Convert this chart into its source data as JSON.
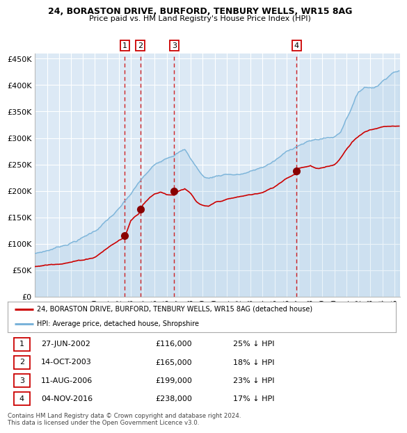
{
  "title1": "24, BORASTON DRIVE, BURFORD, TENBURY WELLS, WR15 8AG",
  "title2": "Price paid vs. HM Land Registry's House Price Index (HPI)",
  "background_color": "#ffffff",
  "plot_bg_color": "#dce9f5",
  "grid_color": "#ffffff",
  "ylim": [
    0,
    460000
  ],
  "xlim_start": 1995.0,
  "xlim_end": 2025.5,
  "yticks": [
    0,
    50000,
    100000,
    150000,
    200000,
    250000,
    300000,
    350000,
    400000,
    450000
  ],
  "ytick_labels": [
    "£0",
    "£50K",
    "£100K",
    "£150K",
    "£200K",
    "£250K",
    "£300K",
    "£350K",
    "£400K",
    "£450K"
  ],
  "xticks": [
    1995,
    1996,
    1997,
    1998,
    1999,
    2000,
    2001,
    2002,
    2003,
    2004,
    2005,
    2006,
    2007,
    2008,
    2009,
    2010,
    2011,
    2012,
    2013,
    2014,
    2015,
    2016,
    2017,
    2018,
    2019,
    2020,
    2021,
    2022,
    2023,
    2024,
    2025
  ],
  "hpi_color": "#7ab3d9",
  "price_color": "#cc0000",
  "sale_marker_color": "#880000",
  "sale_dates": [
    2002.49,
    2003.79,
    2006.62,
    2016.84
  ],
  "sale_prices": [
    116000,
    165000,
    199000,
    238000
  ],
  "dashed_line_color": "#cc0000",
  "legend_entries": [
    "24, BORASTON DRIVE, BURFORD, TENBURY WELLS, WR15 8AG (detached house)",
    "HPI: Average price, detached house, Shropshire"
  ],
  "table_entries": [
    {
      "num": "1",
      "date": "27-JUN-2002",
      "price": "£116,000",
      "hpi": "25% ↓ HPI"
    },
    {
      "num": "2",
      "date": "14-OCT-2003",
      "price": "£165,000",
      "hpi": "18% ↓ HPI"
    },
    {
      "num": "3",
      "date": "11-AUG-2006",
      "price": "£199,000",
      "hpi": "23% ↓ HPI"
    },
    {
      "num": "4",
      "date": "04-NOV-2016",
      "price": "£238,000",
      "hpi": "17% ↓ HPI"
    }
  ],
  "footer": "Contains HM Land Registry data © Crown copyright and database right 2024.\nThis data is licensed under the Open Government Licence v3.0.",
  "hpi_anchors_x": [
    1995,
    1996,
    1997,
    1998,
    1999,
    2000,
    2001,
    2002,
    2003,
    2004,
    2005,
    2006,
    2007,
    2007.5,
    2008,
    2009,
    2009.5,
    2010,
    2011,
    2012,
    2013,
    2014,
    2015,
    2016,
    2017,
    2018,
    2019,
    2020,
    2020.5,
    2021,
    2021.5,
    2022,
    2022.5,
    2023,
    2023.5,
    2024,
    2024.5,
    2025
  ],
  "hpi_anchors_y": [
    82000,
    88000,
    96000,
    105000,
    115000,
    128000,
    148000,
    168000,
    195000,
    225000,
    248000,
    265000,
    278000,
    282000,
    265000,
    232000,
    228000,
    232000,
    238000,
    237000,
    242000,
    250000,
    262000,
    278000,
    293000,
    300000,
    305000,
    308000,
    318000,
    345000,
    370000,
    395000,
    405000,
    405000,
    408000,
    418000,
    430000,
    440000
  ],
  "price_anchors_x": [
    1995,
    1996,
    1997,
    1998,
    1999,
    2000,
    2001,
    2002,
    2002.49,
    2003,
    2003.79,
    2004,
    2004.5,
    2005,
    2005.5,
    2006,
    2006.62,
    2007,
    2007.5,
    2008,
    2008.5,
    2009,
    2009.5,
    2010,
    2011,
    2012,
    2013,
    2014,
    2015,
    2016,
    2016.84,
    2017,
    2018,
    2018.5,
    2019,
    2019.5,
    2020,
    2020.5,
    2021,
    2021.5,
    2022,
    2022.5,
    2023,
    2023.5,
    2024,
    2024.5,
    2025
  ],
  "price_anchors_y": [
    57000,
    60000,
    64000,
    68000,
    72000,
    78000,
    95000,
    110000,
    116000,
    148000,
    165000,
    180000,
    192000,
    200000,
    204000,
    200000,
    199000,
    208000,
    212000,
    202000,
    185000,
    178000,
    175000,
    182000,
    188000,
    192000,
    196000,
    200000,
    210000,
    228000,
    238000,
    248000,
    254000,
    248000,
    248000,
    252000,
    255000,
    268000,
    285000,
    300000,
    310000,
    318000,
    322000,
    325000,
    328000,
    330000,
    330000
  ]
}
